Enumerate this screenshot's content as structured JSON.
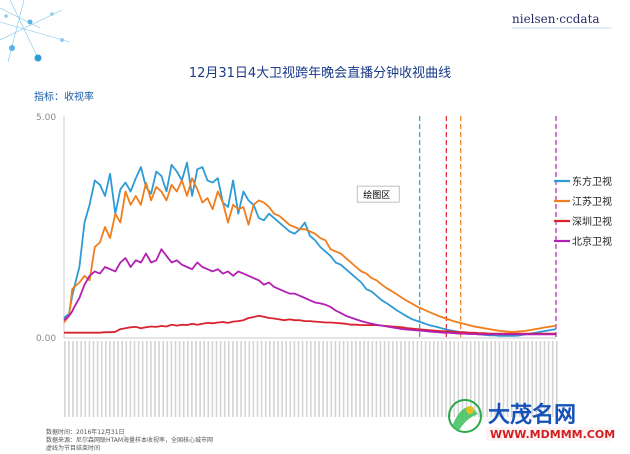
{
  "brand": "nielsen·ccdata",
  "chart_data": {
    "type": "line",
    "title": "12月31日4大卫视跨年晚会直播分钟收视曲线",
    "indicator_label": "指标：收视率",
    "ylim": [
      0,
      5
    ],
    "y_tick_labels": [
      "0.00",
      "5.00"
    ],
    "x": [
      0,
      5,
      8,
      10,
      15,
      20,
      25,
      30,
      35,
      40,
      45,
      50,
      55,
      60,
      65,
      70,
      75,
      80,
      85,
      90,
      95,
      100,
      105,
      110,
      115,
      120,
      125,
      130,
      135,
      140,
      145,
      150,
      155,
      160,
      165,
      170,
      175,
      180,
      185,
      190,
      195,
      200,
      205,
      210,
      215,
      220,
      225,
      230,
      235,
      240,
      245,
      250,
      255,
      260,
      265,
      270,
      275,
      280,
      285,
      290,
      295,
      300,
      305,
      310,
      315,
      320,
      325,
      330,
      335,
      340,
      345,
      350,
      355,
      360,
      365,
      370,
      375,
      380,
      385,
      390,
      395,
      400,
      405,
      410,
      415,
      420,
      425,
      430,
      435,
      440,
      445,
      450,
      455,
      460,
      465,
      470,
      475,
      480
    ],
    "series": [
      {
        "name": "东方卫视",
        "color": "#2e9ad6",
        "values": [
          0.45,
          0.55,
          0.95,
          1.15,
          1.6,
          2.6,
          3.0,
          3.55,
          3.45,
          3.2,
          3.7,
          2.8,
          3.35,
          3.5,
          3.3,
          3.6,
          3.85,
          3.4,
          3.25,
          3.75,
          3.65,
          3.3,
          3.9,
          3.75,
          3.55,
          3.95,
          3.2,
          3.8,
          3.85,
          3.55,
          3.5,
          3.6,
          3.05,
          2.95,
          3.55,
          2.8,
          3.3,
          3.1,
          3.0,
          2.7,
          2.65,
          2.8,
          2.7,
          2.6,
          2.5,
          2.4,
          2.35,
          2.45,
          2.6,
          2.3,
          2.2,
          2.05,
          1.95,
          1.85,
          1.7,
          1.65,
          1.55,
          1.45,
          1.35,
          1.25,
          1.1,
          1.05,
          0.95,
          0.85,
          0.78,
          0.7,
          0.62,
          0.55,
          0.48,
          0.42,
          0.38,
          0.34,
          0.3,
          0.27,
          0.24,
          0.21,
          0.18,
          0.16,
          0.14,
          0.12,
          0.1,
          0.09,
          0.08,
          0.07,
          0.06,
          0.06,
          0.05,
          0.05,
          0.05,
          0.05,
          0.06,
          0.08,
          0.1,
          0.12,
          0.14,
          0.16,
          0.18,
          0.2
        ]
      },
      {
        "name": "江苏卫视",
        "color": "#f07d1a",
        "values": [
          0.35,
          0.5,
          1.1,
          1.15,
          1.25,
          1.4,
          1.3,
          2.05,
          2.15,
          2.5,
          2.25,
          2.8,
          2.6,
          3.3,
          3.0,
          3.2,
          3.0,
          3.5,
          3.1,
          3.4,
          3.3,
          3.1,
          3.45,
          3.3,
          3.55,
          3.2,
          3.6,
          3.35,
          3.05,
          3.15,
          2.9,
          3.3,
          3.05,
          2.6,
          3.0,
          2.9,
          2.95,
          2.55,
          3.0,
          3.1,
          3.05,
          2.95,
          2.8,
          2.75,
          2.65,
          2.55,
          2.5,
          2.45,
          2.45,
          2.4,
          2.35,
          2.25,
          2.2,
          2.0,
          1.95,
          1.9,
          1.8,
          1.7,
          1.6,
          1.5,
          1.45,
          1.35,
          1.3,
          1.2,
          1.12,
          1.05,
          0.98,
          0.9,
          0.83,
          0.77,
          0.7,
          0.65,
          0.6,
          0.55,
          0.5,
          0.46,
          0.42,
          0.38,
          0.35,
          0.32,
          0.29,
          0.26,
          0.24,
          0.22,
          0.2,
          0.18,
          0.16,
          0.15,
          0.14,
          0.14,
          0.15,
          0.16,
          0.18,
          0.2,
          0.22,
          0.24,
          0.26,
          0.28
        ]
      },
      {
        "name": "深圳卫视",
        "color": "#d9232f",
        "values": [
          0.12,
          0.12,
          0.12,
          0.12,
          0.12,
          0.12,
          0.12,
          0.12,
          0.12,
          0.13,
          0.13,
          0.14,
          0.2,
          0.22,
          0.24,
          0.25,
          0.22,
          0.24,
          0.26,
          0.25,
          0.27,
          0.26,
          0.3,
          0.28,
          0.3,
          0.29,
          0.32,
          0.3,
          0.32,
          0.34,
          0.33,
          0.35,
          0.36,
          0.34,
          0.37,
          0.38,
          0.4,
          0.45,
          0.47,
          0.5,
          0.48,
          0.45,
          0.44,
          0.42,
          0.4,
          0.42,
          0.4,
          0.4,
          0.38,
          0.38,
          0.37,
          0.36,
          0.35,
          0.35,
          0.34,
          0.33,
          0.32,
          0.3,
          0.3,
          0.29,
          0.29,
          0.29,
          0.29,
          0.28,
          0.27,
          0.26,
          0.25,
          0.24,
          0.22,
          0.21,
          0.2,
          0.19,
          0.18,
          0.17,
          0.16,
          0.15,
          0.15,
          0.14,
          0.13,
          0.13,
          0.12,
          0.12,
          0.11,
          0.11,
          0.1,
          0.1,
          0.1,
          0.1,
          0.1,
          0.1,
          0.1,
          0.1,
          0.1,
          0.1,
          0.1,
          0.1,
          0.1,
          0.1
        ]
      },
      {
        "name": "北京卫视",
        "color": "#b21fb2",
        "values": [
          0.4,
          0.5,
          0.6,
          0.7,
          0.9,
          1.2,
          1.4,
          1.5,
          1.45,
          1.6,
          1.55,
          1.5,
          1.7,
          1.8,
          1.6,
          1.75,
          1.7,
          1.9,
          1.7,
          1.75,
          2.0,
          1.85,
          1.7,
          1.75,
          1.65,
          1.6,
          1.55,
          1.7,
          1.6,
          1.55,
          1.5,
          1.55,
          1.45,
          1.5,
          1.4,
          1.5,
          1.45,
          1.4,
          1.35,
          1.3,
          1.2,
          1.25,
          1.15,
          1.1,
          1.05,
          1.0,
          1.0,
          0.95,
          0.9,
          0.85,
          0.8,
          0.78,
          0.75,
          0.7,
          0.62,
          0.56,
          0.5,
          0.46,
          0.42,
          0.38,
          0.35,
          0.32,
          0.3,
          0.28,
          0.26,
          0.24,
          0.22,
          0.2,
          0.19,
          0.18,
          0.17,
          0.16,
          0.15,
          0.14,
          0.13,
          0.12,
          0.12,
          0.11,
          0.1,
          0.1,
          0.09,
          0.09,
          0.08,
          0.08,
          0.08,
          0.08,
          0.08,
          0.08,
          0.08,
          0.08,
          0.08,
          0.08,
          0.08,
          0.08,
          0.08,
          0.08,
          0.08,
          0.08
        ]
      }
    ],
    "vlines": [
      {
        "x": 347,
        "color": "#2e9ad6"
      },
      {
        "x": 373,
        "color": "#d9232f"
      },
      {
        "x": 387,
        "color": "#f07d1a"
      },
      {
        "x": 480,
        "color": "#b21fb2"
      }
    ],
    "tooltip": {
      "text": "绘图区",
      "x": 288,
      "y": 3.15
    },
    "legend_position": "right"
  },
  "footer": {
    "lines": [
      "数据时间：2016年12月31日",
      "数据来源：尼尔森网联HTAM海量样本收视率，全国核心城市网",
      "虚线为节目结束时间"
    ]
  },
  "watermark": {
    "site_name": "大茂名网",
    "url": "WWW.MDMMM.COM"
  },
  "colors": {
    "title": "#1a3a8a",
    "axis": "#c8c8c8"
  }
}
